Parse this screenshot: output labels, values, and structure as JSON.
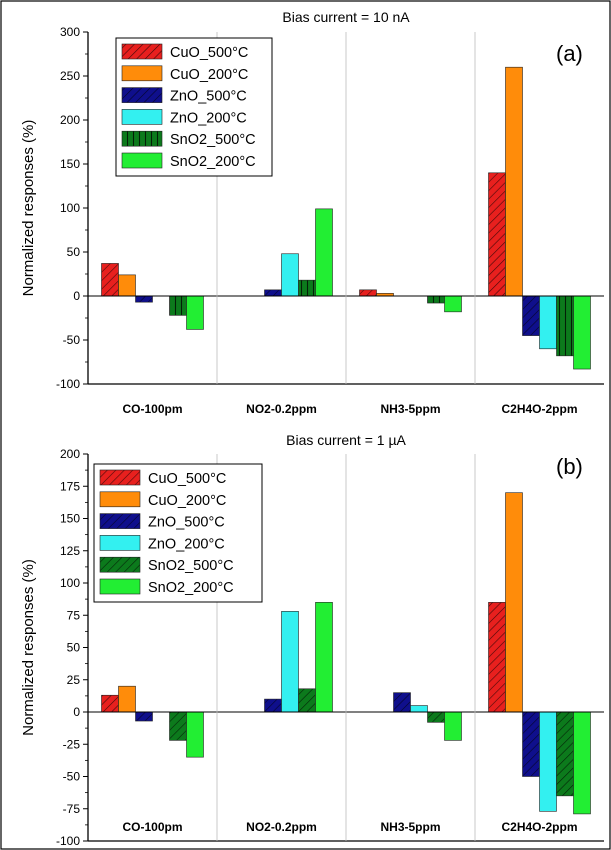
{
  "chart_data": [
    {
      "type": "bar",
      "panel": "(a)",
      "title": "Bias current = 10 nA",
      "ylabel": "Normalized responses (%)",
      "xlabel": "",
      "ylim": [
        -100,
        300
      ],
      "yticks": [
        -100,
        -50,
        0,
        50,
        100,
        150,
        200,
        250,
        300
      ],
      "categories": [
        "CO-100pm",
        "NO2-0.2ppm",
        "NH3-5ppm",
        "C2H4O-2ppm"
      ],
      "legend_position": "top-left",
      "grid": false,
      "series": [
        {
          "name": "CuO_500°C",
          "color": "#e8201e",
          "hatch": "diag-up",
          "values": [
            37,
            0,
            7,
            140
          ]
        },
        {
          "name": "CuO_200°C",
          "color": "#ff8c0a",
          "hatch": "none",
          "values": [
            24,
            0,
            3,
            260
          ]
        },
        {
          "name": "ZnO_500°C",
          "color": "#0f0f8c",
          "hatch": "diag-up",
          "values": [
            -7,
            7,
            0,
            -45
          ]
        },
        {
          "name": "ZnO_200°C",
          "color": "#33f0f0",
          "hatch": "none",
          "values": [
            0,
            48,
            0,
            -60
          ]
        },
        {
          "name": "SnO2_500°C",
          "color": "#0c7a1c",
          "hatch": "vertical",
          "values": [
            -22,
            18,
            -8,
            -68
          ]
        },
        {
          "name": "SnO2_200°C",
          "color": "#22ee33",
          "hatch": "none",
          "values": [
            -38,
            99,
            -18,
            -83
          ]
        }
      ]
    },
    {
      "type": "bar",
      "panel": "(b)",
      "title": "Bias current = 1 µA",
      "ylabel": "Normalized responses (%)",
      "xlabel": "",
      "ylim": [
        -100,
        200
      ],
      "yticks": [
        -100,
        -75,
        -50,
        -25,
        0,
        25,
        50,
        75,
        100,
        125,
        150,
        175,
        200
      ],
      "categories": [
        "CO-100pm",
        "NO2-0.2ppm",
        "NH3-5ppm",
        "C2H4O-2ppm"
      ],
      "legend_position": "top-left",
      "grid": false,
      "series": [
        {
          "name": "CuO_500°C",
          "color": "#e8201e",
          "hatch": "diag-up",
          "values": [
            13,
            0,
            0,
            85
          ]
        },
        {
          "name": "CuO_200°C",
          "color": "#ff8c0a",
          "hatch": "none",
          "values": [
            20,
            0,
            0,
            170
          ]
        },
        {
          "name": "ZnO_500°C",
          "color": "#0f0f8c",
          "hatch": "diag-up",
          "values": [
            -7,
            10,
            15,
            -50
          ]
        },
        {
          "name": "ZnO_200°C",
          "color": "#33f0f0",
          "hatch": "none",
          "values": [
            0,
            78,
            5,
            -77
          ]
        },
        {
          "name": "SnO2_500°C",
          "color": "#0c7a1c",
          "hatch": "diag-up",
          "values": [
            -22,
            18,
            -8,
            -65
          ]
        },
        {
          "name": "SnO2_200°C",
          "color": "#22ee33",
          "hatch": "none",
          "values": [
            -35,
            85,
            -22,
            -79
          ]
        }
      ]
    }
  ]
}
